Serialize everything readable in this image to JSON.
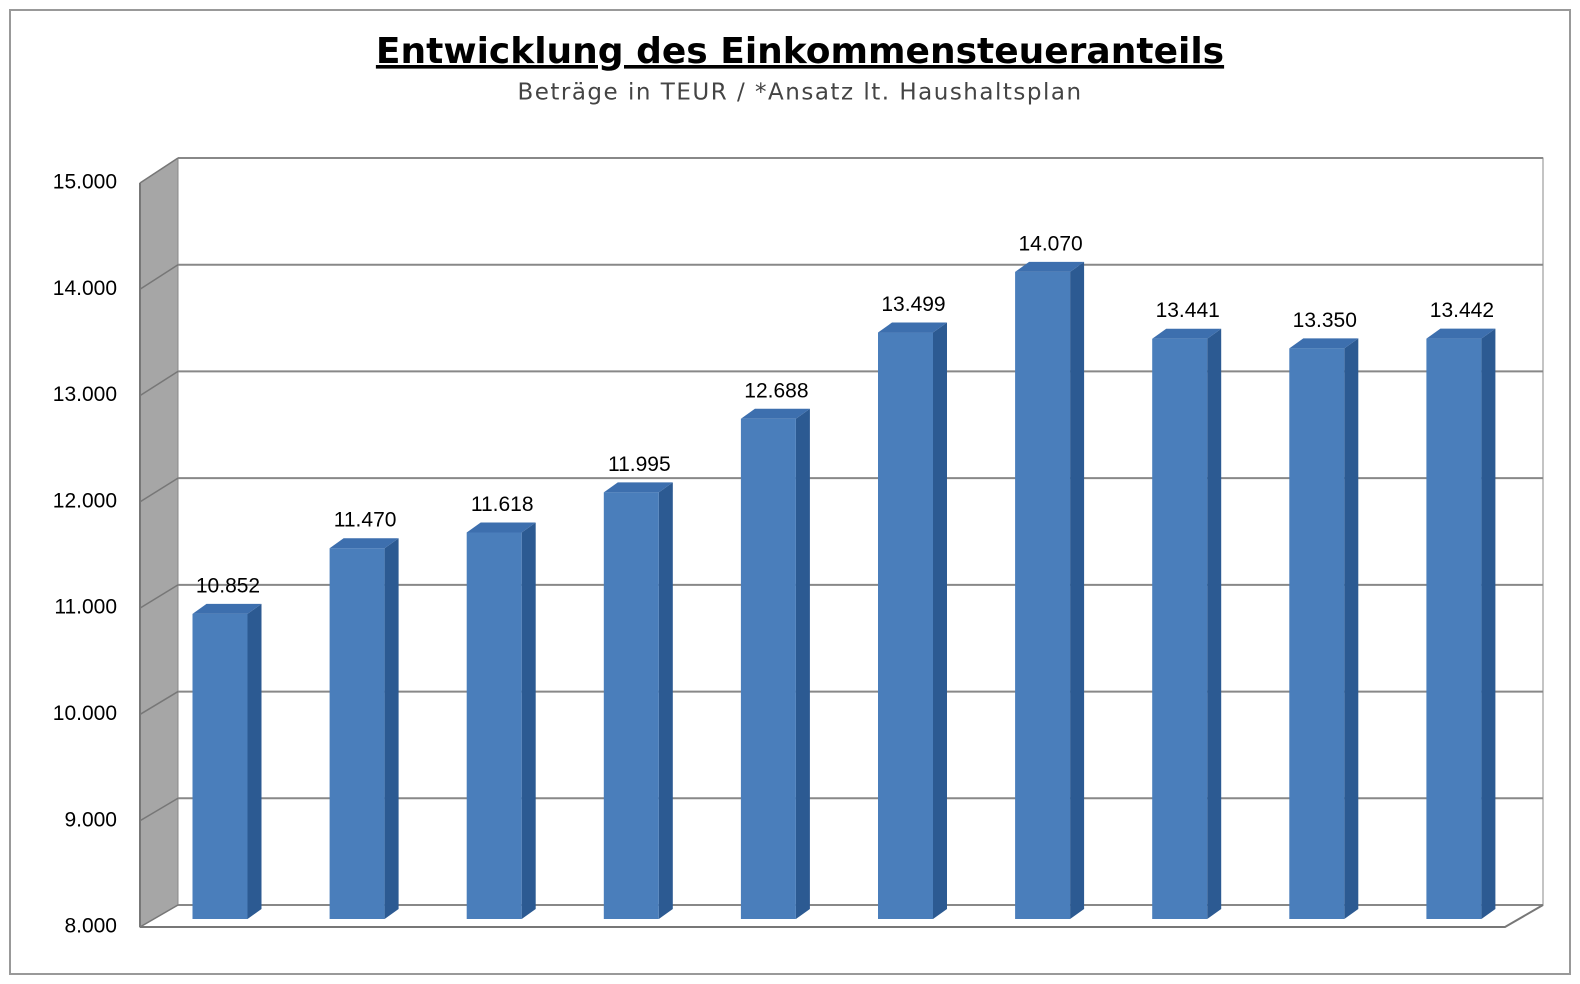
{
  "chart_data": {
    "type": "bar",
    "title": "Entwicklung des Einkommensteueranteils",
    "subtitle": "Beträge in TEUR / *Ansatz lt. Haushaltsplan",
    "values": [
      10852,
      11470,
      11618,
      11995,
      12688,
      13499,
      14070,
      13441,
      13350,
      13442
    ],
    "value_labels": [
      "10.852",
      "11.470",
      "11.618",
      "11.995",
      "12.688",
      "13.499",
      "14.070",
      "13.441",
      "13.350",
      "13.442"
    ],
    "color": "#4a7ebb",
    "ylim": [
      8000,
      15000
    ],
    "yticks": [
      {
        "value": 8000,
        "label": "8.000"
      },
      {
        "value": 9000,
        "label": "9.000"
      },
      {
        "value": 10000,
        "label": "10.000"
      },
      {
        "value": 11000,
        "label": "11.000"
      },
      {
        "value": 12000,
        "label": "12.000"
      },
      {
        "value": 13000,
        "label": "13.000"
      },
      {
        "value": 14000,
        "label": "14.000"
      },
      {
        "value": 15000,
        "label": "15.000"
      }
    ],
    "grid": true
  }
}
